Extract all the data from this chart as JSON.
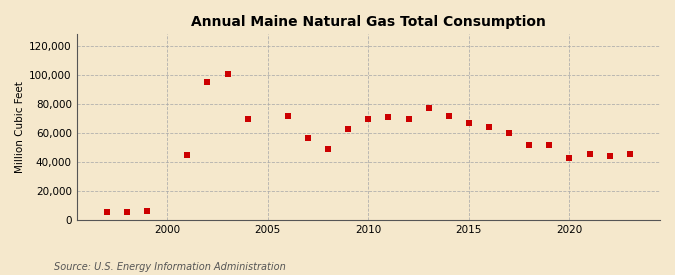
{
  "title": "Annual Maine Natural Gas Total Consumption",
  "ylabel": "Million Cubic Feet",
  "source": "Source: U.S. Energy Information Administration",
  "background_color": "#f5e8cc",
  "plot_background_color": "#f5e8cc",
  "marker_color": "#cc0000",
  "marker": "s",
  "marker_size": 4,
  "xlim": [
    1995.5,
    2024.5
  ],
  "ylim": [
    0,
    128000
  ],
  "yticks": [
    0,
    20000,
    40000,
    60000,
    80000,
    100000,
    120000
  ],
  "xticks": [
    2000,
    2005,
    2010,
    2015,
    2020
  ],
  "years": [
    1997,
    1998,
    1999,
    2001,
    2002,
    2003,
    2004,
    2006,
    2007,
    2008,
    2009,
    2010,
    2011,
    2012,
    2013,
    2014,
    2015,
    2016,
    2017,
    2018,
    2019,
    2020,
    2021,
    2022,
    2023
  ],
  "values": [
    6000,
    5500,
    6500,
    45000,
    95000,
    101000,
    70000,
    72000,
    57000,
    49000,
    63000,
    70000,
    71000,
    70000,
    77000,
    71500,
    67000,
    64000,
    60000,
    52000,
    52000,
    43000,
    46000,
    44500,
    45500
  ]
}
